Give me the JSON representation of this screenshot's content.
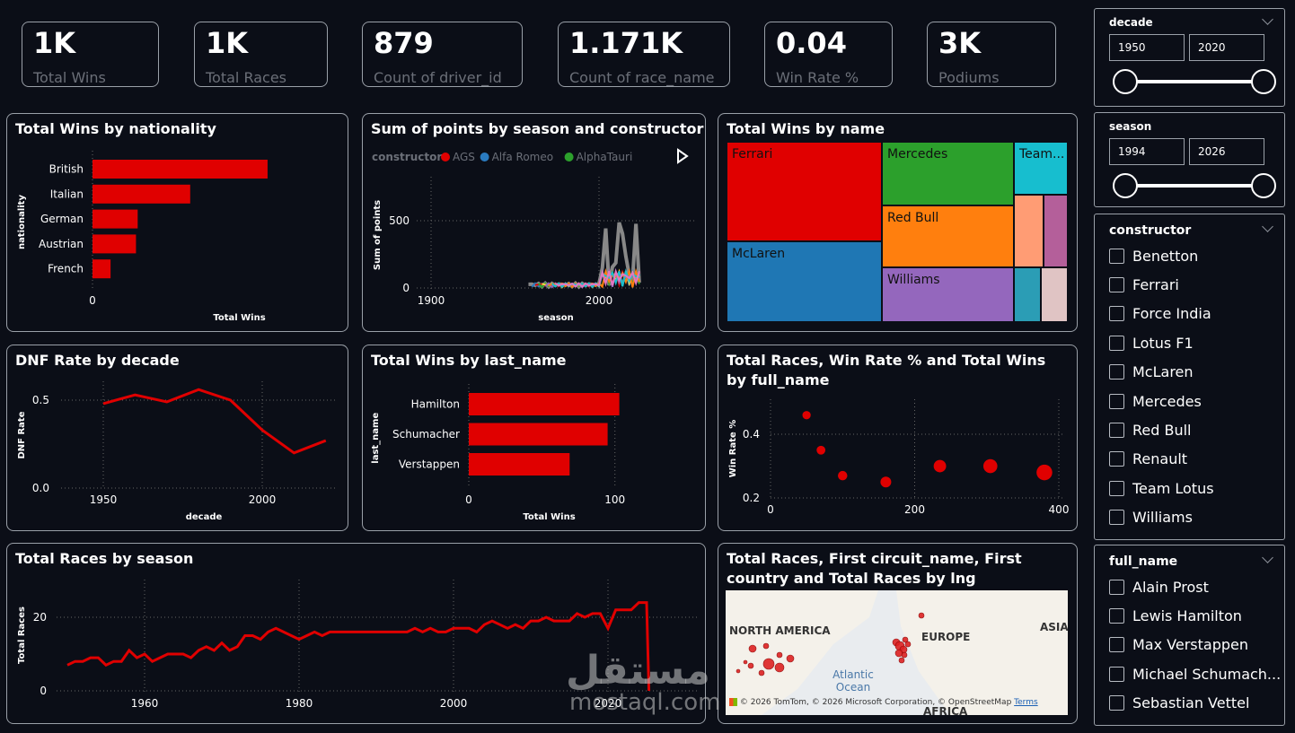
{
  "kpis": [
    {
      "value": "1K",
      "label": "Total Wins"
    },
    {
      "value": "1K",
      "label": "Total Races"
    },
    {
      "value": "879",
      "label": "Count of driver_id"
    },
    {
      "value": "1.171K",
      "label": "Count of race_name"
    },
    {
      "value": "0.04",
      "label": "Win Rate %"
    },
    {
      "value": "3K",
      "label": "Podiums"
    }
  ],
  "visuals": {
    "wins_nationality": {
      "title": "Total Wins by nationality"
    },
    "points_season": {
      "title": "Sum of points by season and constructor",
      "legend_title": "constructor",
      "legend": [
        "AGS",
        "Alfa Romeo",
        "AlphaTauri"
      ]
    },
    "wins_name": {
      "title": "Total Wins by name"
    },
    "dnf_decade": {
      "title": "DNF Rate by decade"
    },
    "wins_lastname": {
      "title": "Total Wins by last_name"
    },
    "scatter_fullname": {
      "title": "Total Races, Win Rate % and Total Wins by full_name"
    },
    "races_season": {
      "title": "Total Races by season"
    },
    "map_visual": {
      "title": "Total Races, First circuit_name, First country and Total Races by lng"
    }
  },
  "chart_data": [
    {
      "type": "bar",
      "title": "Total Wins by nationality",
      "categories": [
        "British",
        "Italian",
        "German",
        "Austrian",
        "French"
      ],
      "values": [
        310,
        173,
        80,
        77,
        32
      ],
      "xlabel": "Total Wins",
      "ylabel": "nationality",
      "xticks": [
        "0",
        "500"
      ],
      "xlim": [
        0,
        520
      ],
      "color": "#e00000"
    },
    {
      "type": "line",
      "title": "Sum of points by season and constructor",
      "xlabel": "season",
      "ylabel": "Sum of points",
      "xticks": [
        "1900",
        "2000"
      ],
      "yticks": [
        "0",
        "500"
      ],
      "series": [
        {
          "name": "AGS",
          "color": "#e00000"
        },
        {
          "name": "Alfa Romeo",
          "color": "#2a7bc0"
        },
        {
          "name": "AlphaTauri",
          "color": "#2ca02c"
        }
      ]
    },
    {
      "type": "treemap",
      "title": "Total Wins by name",
      "items": [
        {
          "name": "Ferrari",
          "color": "#e00000"
        },
        {
          "name": "McLaren",
          "color": "#1f77b4"
        },
        {
          "name": "Mercedes",
          "color": "#2ca02c"
        },
        {
          "name": "Red Bull",
          "color": "#ff7f0e"
        },
        {
          "name": "Williams",
          "color": "#9467bd"
        },
        {
          "name": "Team...",
          "color": "#17becf"
        }
      ]
    },
    {
      "type": "line",
      "title": "DNF Rate by decade",
      "xlabel": "decade",
      "ylabel": "DNF Rate",
      "x": [
        1950,
        1960,
        1970,
        1980,
        1990,
        2000,
        2010,
        2020
      ],
      "values": [
        0.48,
        0.53,
        0.49,
        0.56,
        0.5,
        0.33,
        0.2,
        0.27
      ],
      "xticks": [
        "1950",
        "2000"
      ],
      "yticks": [
        "0.0",
        "0.5"
      ],
      "ylim": [
        0,
        0.6
      ],
      "color": "#e00000"
    },
    {
      "type": "bar",
      "title": "Total Wins by last_name",
      "categories": [
        "Hamilton",
        "Schumacher",
        "Verstappen"
      ],
      "values": [
        103,
        95,
        69
      ],
      "xlabel": "Total Wins",
      "ylabel": "last_name",
      "xticks": [
        "0",
        "100"
      ],
      "xlim": [
        0,
        110
      ],
      "color": "#e00000"
    },
    {
      "type": "scatter",
      "title": "Total Races, Win Rate % and Total Wins by full_name",
      "xlabel": "",
      "ylabel": "Win Rate %",
      "x": [
        50,
        70,
        100,
        160,
        235,
        305,
        380
      ],
      "values": [
        0.46,
        0.35,
        0.27,
        0.25,
        0.3,
        0.3,
        0.28
      ],
      "xticks": [
        "0",
        "200",
        "400"
      ],
      "yticks": [
        "0.2",
        "0.4"
      ],
      "color": "#e00000"
    },
    {
      "type": "line",
      "title": "Total Races by season",
      "xlabel": "",
      "ylabel": "Total Races",
      "x": [
        1950,
        1951,
        1952,
        1953,
        1954,
        1955,
        1956,
        1957,
        1958,
        1959,
        1960,
        1961,
        1962,
        1963,
        1964,
        1965,
        1966,
        1967,
        1968,
        1969,
        1970,
        1971,
        1972,
        1973,
        1974,
        1975,
        1976,
        1977,
        1978,
        1979,
        1980,
        1981,
        1982,
        1983,
        1984,
        1985,
        1986,
        1987,
        1988,
        1989,
        1990,
        1991,
        1992,
        1993,
        1994,
        1995,
        1996,
        1997,
        1998,
        1999,
        2000,
        2001,
        2002,
        2003,
        2004,
        2005,
        2006,
        2007,
        2008,
        2009,
        2010,
        2011,
        2012,
        2013,
        2014,
        2015,
        2016,
        2017,
        2018,
        2019,
        2020,
        2021,
        2022,
        2023,
        2024,
        2025
      ],
      "values": [
        7,
        8,
        8,
        9,
        9,
        7,
        8,
        8,
        11,
        9,
        10,
        8,
        9,
        10,
        10,
        10,
        9,
        11,
        12,
        11,
        13,
        11,
        12,
        15,
        15,
        14,
        16,
        17,
        16,
        15,
        14,
        15,
        16,
        15,
        16,
        16,
        16,
        16,
        16,
        16,
        16,
        16,
        16,
        16,
        16,
        17,
        16,
        17,
        16,
        16,
        17,
        17,
        17,
        16,
        18,
        19,
        18,
        17,
        18,
        17,
        19,
        19,
        20,
        19,
        19,
        19,
        21,
        20,
        21,
        21,
        17,
        22,
        22,
        22,
        24,
        24
      ],
      "drop_to": 0,
      "xticks": [
        "1960",
        "1980",
        "2000",
        "2020"
      ],
      "yticks": [
        "0",
        "20"
      ],
      "ylim": [
        0,
        26
      ],
      "color": "#e00000"
    }
  ],
  "slicers": {
    "decade": {
      "title": "decade",
      "from": "1950",
      "to": "2020"
    },
    "season": {
      "title": "season",
      "from": "1994",
      "to": "2026"
    },
    "constructor": {
      "title": "constructor",
      "items": [
        "Benetton",
        "Ferrari",
        "Force India",
        "Lotus F1",
        "McLaren",
        "Mercedes",
        "Red Bull",
        "Renault",
        "Team Lotus",
        "Williams"
      ]
    },
    "full_name": {
      "title": "full_name",
      "items": [
        "Alain Prost",
        "Lewis Hamilton",
        "Max Verstappen",
        "Michael Schumach...",
        "Sebastian Vettel"
      ]
    }
  },
  "map": {
    "labels": {
      "na": "NORTH AMERICA",
      "eu": "EUROPE",
      "asia": "ASIA",
      "ocean": "Atlantic\nOcean",
      "africa": "AFRICA"
    },
    "attribution": "© 2026 TomTom, © 2026 Microsoft Corporation, © OpenStreetMap",
    "terms": "Terms"
  },
  "watermark": {
    "arabic": "مستقل",
    "latin": "mostaql.com"
  }
}
